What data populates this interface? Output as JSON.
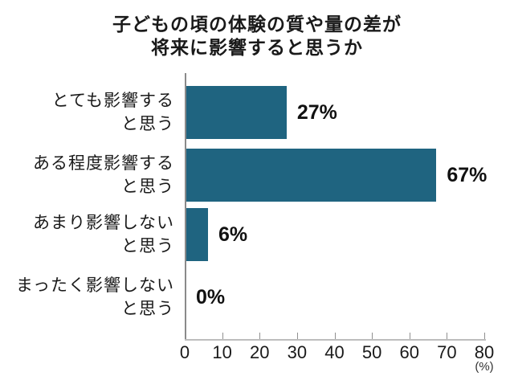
{
  "title": {
    "line1": "子どもの頃の体験の質や量の差が",
    "line2": "将来に影響すると思うか"
  },
  "chart_data": {
    "type": "bar",
    "orientation": "horizontal",
    "title": "子どもの頃の体験の質や量の差が 将来に影響すると思うか",
    "categories": [
      "とても影響すると思う",
      "ある程度影響すると思う",
      "あまり影響しないと思う",
      "まったく影響しないと思う"
    ],
    "category_lines": [
      [
        "とても影響する",
        "と思う"
      ],
      [
        "ある程度影響する",
        "と思う"
      ],
      [
        "あまり影響しない",
        "と思う"
      ],
      [
        "まったく影響しない",
        "と思う"
      ]
    ],
    "values": [
      27,
      67,
      6,
      0
    ],
    "value_labels": [
      "27%",
      "67%",
      "6%",
      "0%"
    ],
    "xlim": [
      0,
      80
    ],
    "xticks": [
      0,
      10,
      20,
      30,
      40,
      50,
      60,
      70,
      80
    ],
    "xlabel": "(%)",
    "grid": false,
    "legend": null,
    "bar_color": "#1f6480"
  },
  "colors": {
    "bar": "#1f6480",
    "x_axis_line": "#bdbdbd",
    "y_axis_line": "#8a8a8a",
    "tick": "#909090",
    "text": "#1a1a1a",
    "background": "#ffffff"
  }
}
